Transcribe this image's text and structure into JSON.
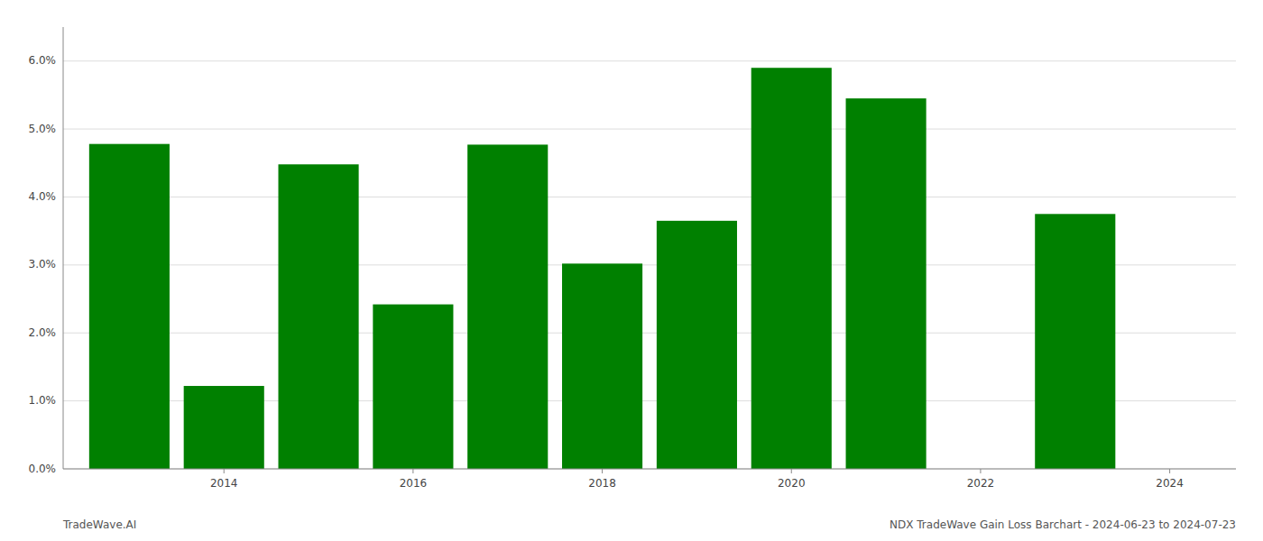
{
  "chart_data": {
    "type": "bar",
    "x": [
      2013,
      2014,
      2015,
      2016,
      2017,
      2018,
      2019,
      2020,
      2021,
      2022,
      2023
    ],
    "values": [
      0.0478,
      0.0122,
      0.0448,
      0.0242,
      0.0477,
      0.0302,
      0.0365,
      0.059,
      0.0545,
      null,
      0.0375
    ],
    "color": "#008000",
    "xlim": [
      2012.3,
      2024.7
    ],
    "xticks": [
      2014,
      2016,
      2018,
      2020,
      2022,
      2024
    ],
    "ylim": [
      0,
      0.065
    ],
    "yticks": [
      {
        "value": 0.0,
        "label": "0.0%"
      },
      {
        "value": 0.01,
        "label": "1.0%"
      },
      {
        "value": 0.02,
        "label": "2.0%"
      },
      {
        "value": 0.03,
        "label": "3.0%"
      },
      {
        "value": 0.04,
        "label": "4.0%"
      },
      {
        "value": 0.05,
        "label": "5.0%"
      },
      {
        "value": 0.06,
        "label": "6.0%"
      }
    ],
    "grid": true,
    "annotations": [
      "TradeWave.AI",
      "NDX TradeWave Gain Loss Barchart - 2024-06-23 to 2024-07-23"
    ]
  }
}
